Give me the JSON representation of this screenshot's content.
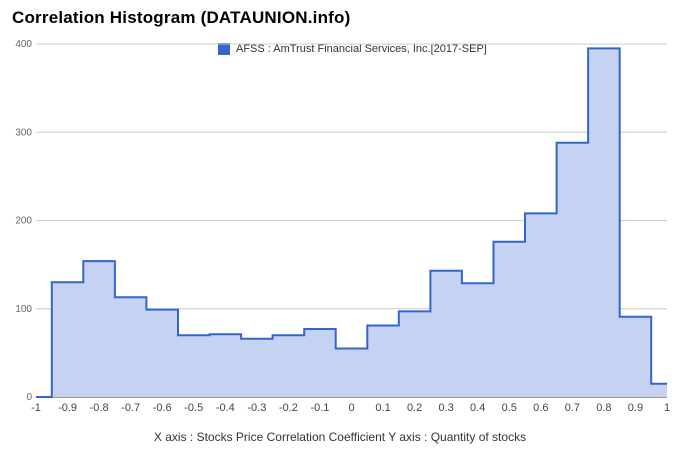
{
  "title": "Correlation Histogram (DATAUNION.info)",
  "x_caption": "X axis : Stocks Price Correlation Coefficient  Y axis : Quantity of stocks",
  "colors": {
    "fill": "#c5d2f2",
    "line": "#3366cc",
    "grid": "#cccccc"
  },
  "chart_data": {
    "type": "area",
    "title": "Correlation Histogram (DATAUNION.info)",
    "xlabel": "Stocks Price Correlation Coefficient",
    "ylabel": "Quantity of stocks",
    "xlim": [
      -1,
      1
    ],
    "ylim": [
      0,
      400
    ],
    "x_ticks": [
      "-1",
      "-0.9",
      "-0.8",
      "-0.7",
      "-0.6",
      "-0.5",
      "-0.4",
      "-0.3",
      "-0.2",
      "-0.1",
      "0",
      "0.1",
      "0.2",
      "0.3",
      "0.4",
      "0.5",
      "0.6",
      "0.7",
      "0.8",
      "0.9",
      "1"
    ],
    "y_ticks": [
      "0",
      "100",
      "200",
      "300",
      "400"
    ],
    "grid": true,
    "legend_position": "top",
    "series": [
      {
        "name": "AFSS : AmTrust Financial Services, Inc.[2017-SEP]",
        "x": [
          -1.0,
          -0.9,
          -0.8,
          -0.7,
          -0.6,
          -0.5,
          -0.4,
          -0.3,
          -0.2,
          -0.1,
          0.0,
          0.1,
          0.2,
          0.3,
          0.4,
          0.5,
          0.6,
          0.7,
          0.8,
          0.9,
          1.0
        ],
        "values": [
          0,
          130,
          154,
          113,
          99,
          70,
          71,
          66,
          70,
          77,
          55,
          81,
          97,
          143,
          129,
          176,
          208,
          288,
          395,
          91,
          15
        ]
      }
    ]
  }
}
